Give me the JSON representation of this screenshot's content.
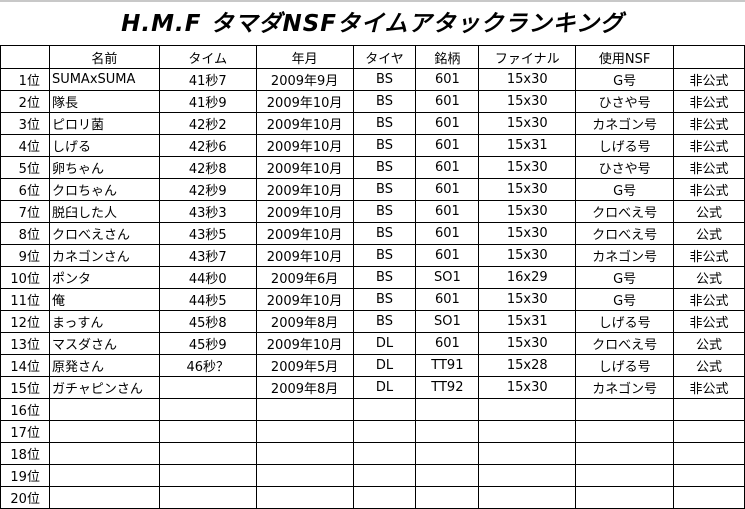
{
  "title": "H.M.F タマダNSFタイムアタックランキング",
  "headers": [
    "",
    "名前",
    "タイム",
    "年月",
    "タイヤ",
    "銘柄",
    "ファイナル",
    "使用NSF",
    ""
  ],
  "rows": [
    [
      "1位",
      "SUMAxSUMA",
      "41秒7",
      "2009年9月",
      "BS",
      "601",
      "15x30",
      "G号",
      "非公式"
    ],
    [
      "2位",
      "隊長",
      "41秒9",
      "2009年10月",
      "BS",
      "601",
      "15x30",
      "ひさや号",
      "非公式"
    ],
    [
      "3位",
      "ピロリ菌",
      "42秒2",
      "2009年10月",
      "BS",
      "601",
      "15x30",
      "カネゴン号",
      "非公式"
    ],
    [
      "4位",
      "しげる",
      "42秒6",
      "2009年10月",
      "BS",
      "601",
      "15x31",
      "しげる号",
      "非公式"
    ],
    [
      "5位",
      "卵ちゃん",
      "42秒8",
      "2009年10月",
      "BS",
      "601",
      "15x30",
      "ひさや号",
      "非公式"
    ],
    [
      "6位",
      "クロちゃん",
      "42秒9",
      "2009年10月",
      "BS",
      "601",
      "15x30",
      "G号",
      "非公式"
    ],
    [
      "7位",
      "脱臼した人",
      "43秒3",
      "2009年10月",
      "BS",
      "601",
      "15x30",
      "クロべえ号",
      "公式"
    ],
    [
      "8位",
      "クロべえさん",
      "43秒5",
      "2009年10月",
      "BS",
      "601",
      "15x30",
      "クロべえ号",
      "公式"
    ],
    [
      "9位",
      "カネゴンさん",
      "43秒7",
      "2009年10月",
      "BS",
      "601",
      "15x30",
      "カネゴン号",
      "非公式"
    ],
    [
      "10位",
      "ポンタ",
      "44秒0",
      "2009年6月",
      "BS",
      "SO1",
      "16x29",
      "G号",
      "公式"
    ],
    [
      "11位",
      "俺",
      "44秒5",
      "2009年10月",
      "BS",
      "601",
      "15x30",
      "G号",
      "非公式"
    ],
    [
      "12位",
      "まっすん",
      "45秒8",
      "2009年8月",
      "BS",
      "SO1",
      "15x31",
      "しげる号",
      "非公式"
    ],
    [
      "13位",
      "マスダさん",
      "45秒9",
      "2009年10月",
      "DL",
      "601",
      "15x30",
      "クロべえ号",
      "公式"
    ],
    [
      "14位",
      "原発さん",
      "46秒？",
      "2009年5月",
      "DL",
      "TT91",
      "15x28",
      "しげる号",
      "公式"
    ],
    [
      "15位",
      "ガチャピンさん",
      "",
      "2009年8月",
      "DL",
      "TT92",
      "15x30",
      "カネゴン号",
      "非公式"
    ],
    [
      "16位",
      "",
      "",
      "",
      "",
      "",
      "",
      "",
      ""
    ],
    [
      "17位",
      "",
      "",
      "",
      "",
      "",
      "",
      "",
      ""
    ],
    [
      "18位",
      "",
      "",
      "",
      "",
      "",
      "",
      "",
      ""
    ],
    [
      "19位",
      "",
      "",
      "",
      "",
      "",
      "",
      "",
      ""
    ],
    [
      "20位",
      "",
      "",
      "",
      "",
      "",
      "",
      "",
      ""
    ]
  ]
}
